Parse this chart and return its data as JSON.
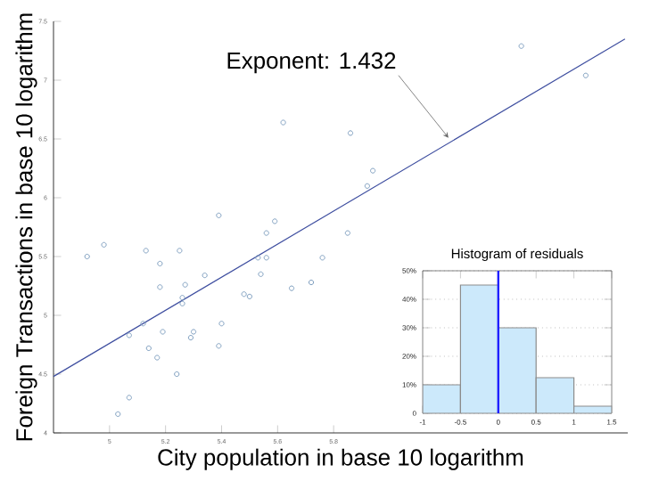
{
  "chart_data": [
    {
      "type": "scatter",
      "xlabel": "City population in base 10 logarithm",
      "ylabel": "Foreign Transactions in base 10 logarithm",
      "xlim": [
        4.8,
        6.85
      ],
      "ylim": [
        4,
        7.5
      ],
      "xticks": [
        5,
        5.2,
        5.4,
        5.6,
        5.8
      ],
      "yticks": [
        4,
        4.5,
        5,
        5.5,
        6,
        6.5,
        7,
        7.5
      ],
      "annotations": [
        {
          "text": "Exponent: 1.432",
          "x": 6.21,
          "y": 6.51
        }
      ],
      "series": [
        {
          "type": "scatter",
          "marker": "circle",
          "color": "#7f9fbf",
          "x": [
            4.92,
            4.98,
            5.13,
            5.25,
            5.18,
            5.18,
            5.27,
            5.34,
            5.26,
            5.26,
            5.12,
            5.07,
            5.19,
            5.3,
            5.29,
            5.4,
            5.14,
            5.39,
            5.17,
            5.24,
            5.07,
            5.03,
            5.48,
            5.5,
            5.54,
            5.53,
            5.56,
            5.56,
            5.65,
            5.72,
            5.76,
            6.47,
            6.7,
            5.86,
            5.94,
            5.92,
            5.85,
            5.62,
            5.39,
            5.59
          ],
          "values": [
            5.5,
            5.6,
            5.55,
            5.55,
            5.44,
            5.24,
            5.26,
            5.34,
            5.15,
            5.1,
            4.93,
            4.83,
            4.86,
            4.86,
            4.81,
            4.93,
            4.72,
            4.74,
            4.64,
            4.5,
            4.3,
            4.16,
            5.18,
            5.16,
            5.35,
            5.49,
            5.49,
            5.7,
            5.23,
            5.28,
            5.49,
            7.29,
            7.04,
            6.55,
            6.23,
            6.1,
            5.7,
            6.64,
            5.85,
            5.8
          ]
        },
        {
          "type": "line",
          "color": "#3f4fa0",
          "x": [
            4.8,
            6.84
          ],
          "values": [
            4.48,
            7.35
          ]
        }
      ]
    },
    {
      "type": "histogram",
      "title": "Histogram of residuals",
      "bins": [
        -1,
        -0.5,
        0,
        0.5,
        1,
        1.5
      ],
      "values": [
        10,
        45,
        30,
        12.5,
        2.5
      ],
      "color": "#cce9fb",
      "xlim": [
        -1,
        1.5
      ],
      "ylim": [
        0,
        50
      ],
      "xticks": [
        -1,
        -0.5,
        0,
        0.5,
        1,
        1.5
      ],
      "yticks": [
        0,
        {
          "value": 10,
          "label": "10%"
        },
        {
          "value": 20,
          "label": "20%"
        },
        {
          "value": 30,
          "label": "30%"
        },
        {
          "value": 40,
          "label": "40%"
        },
        {
          "value": 50,
          "label": "50%"
        }
      ],
      "grid": "y",
      "ref_lines": [
        {
          "axis": "x",
          "value": 0,
          "color": "#2020ff"
        }
      ]
    }
  ]
}
